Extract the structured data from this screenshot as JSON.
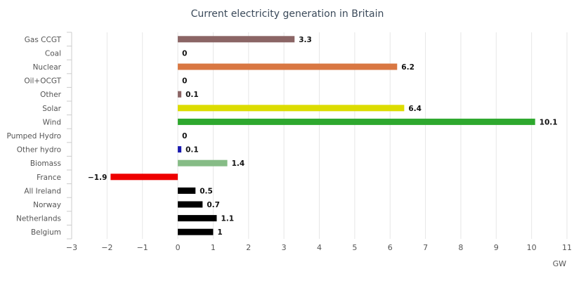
{
  "chart_data": {
    "type": "bar",
    "orientation": "horizontal",
    "title": "Current electricity generation in Britain",
    "xlabel": "GW",
    "ylabel": "",
    "xlim": [
      -3,
      11
    ],
    "xticks": [
      "−3",
      "−2",
      "−1",
      "0",
      "1",
      "2",
      "3",
      "4",
      "5",
      "6",
      "7",
      "8",
      "9",
      "10",
      "11"
    ],
    "grid": true,
    "categories": [
      "Gas CCGT",
      "Coal",
      "Nuclear",
      "Oil+OCGT",
      "Other",
      "Solar",
      "Wind",
      "Pumped Hydro",
      "Other hydro",
      "Biomass",
      "France",
      "All Ireland",
      "Norway",
      "Netherlands",
      "Belgium"
    ],
    "values": [
      3.3,
      0,
      6.2,
      0,
      0.1,
      6.4,
      10.1,
      0,
      0.1,
      1.4,
      -1.9,
      0.5,
      0.7,
      1.1,
      1
    ],
    "value_labels": [
      "3.3",
      "0",
      "6.2",
      "0",
      "0.1",
      "6.4",
      "10.1",
      "0",
      "0.1",
      "1.4",
      "−1.9",
      "0.5",
      "0.7",
      "1.1",
      "1"
    ],
    "colors": [
      "#8B6565",
      "#000000",
      "#D97742",
      "#000000",
      "#8B6565",
      "#DCDC00",
      "#2EA82E",
      "#000000",
      "#1A1AB0",
      "#86BC86",
      "#EE0000",
      "#000000",
      "#000000",
      "#000000",
      "#000000"
    ]
  }
}
